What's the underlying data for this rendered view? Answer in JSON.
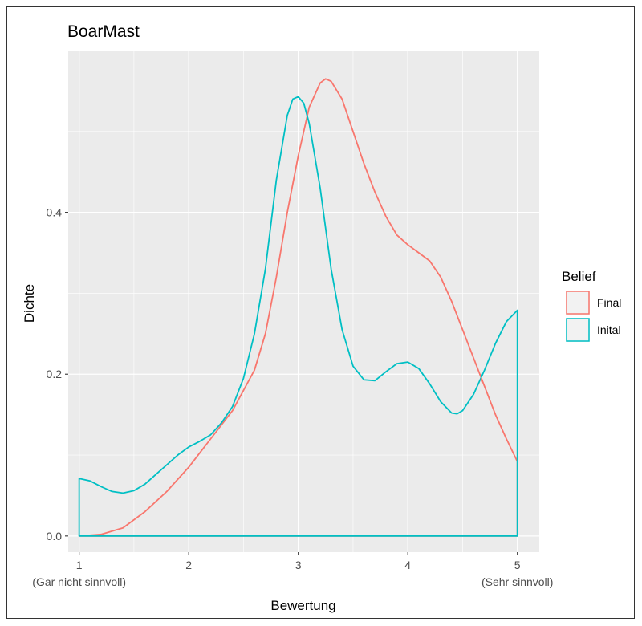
{
  "chart_data": {
    "type": "area",
    "title": "BoarMast",
    "xlabel": "Bewertung",
    "ylabel": "Dichte",
    "xlim": [
      0.9,
      5.2
    ],
    "ylim": [
      -0.02,
      0.6
    ],
    "x_ticks": [
      {
        "value": 1,
        "label": "1",
        "sublabel": "(Gar nicht sinnvoll)"
      },
      {
        "value": 2,
        "label": "2",
        "sublabel": ""
      },
      {
        "value": 3,
        "label": "3",
        "sublabel": ""
      },
      {
        "value": 4,
        "label": "4",
        "sublabel": ""
      },
      {
        "value": 5,
        "label": "5",
        "sublabel": "(Sehr sinnvoll)"
      }
    ],
    "y_ticks": [
      {
        "value": 0.0,
        "label": "0.0"
      },
      {
        "value": 0.2,
        "label": "0.2"
      },
      {
        "value": 0.4,
        "label": "0.4"
      }
    ],
    "grid": true,
    "legend": {
      "title": "Belief",
      "placement": "right"
    },
    "series": [
      {
        "name": "Final",
        "color": "#F8766D",
        "x": [
          1.0,
          1.2,
          1.4,
          1.6,
          1.8,
          2.0,
          2.2,
          2.4,
          2.6,
          2.7,
          2.8,
          2.9,
          3.0,
          3.1,
          3.2,
          3.25,
          3.3,
          3.4,
          3.5,
          3.6,
          3.7,
          3.8,
          3.9,
          4.0,
          4.1,
          4.2,
          4.3,
          4.4,
          4.5,
          4.6,
          4.7,
          4.8,
          4.9,
          5.0
        ],
        "values": [
          0.0,
          0.002,
          0.01,
          0.03,
          0.055,
          0.085,
          0.12,
          0.155,
          0.205,
          0.25,
          0.32,
          0.4,
          0.47,
          0.53,
          0.56,
          0.565,
          0.562,
          0.54,
          0.5,
          0.46,
          0.425,
          0.395,
          0.372,
          0.36,
          0.35,
          0.34,
          0.32,
          0.29,
          0.255,
          0.22,
          0.185,
          0.15,
          0.12,
          0.092
        ]
      },
      {
        "name": "Inital",
        "color": "#00BFC4",
        "x": [
          1.0,
          1.1,
          1.2,
          1.3,
          1.4,
          1.5,
          1.6,
          1.7,
          1.8,
          1.9,
          2.0,
          2.1,
          2.2,
          2.3,
          2.4,
          2.5,
          2.6,
          2.7,
          2.8,
          2.9,
          2.95,
          3.0,
          3.05,
          3.1,
          3.2,
          3.3,
          3.4,
          3.5,
          3.6,
          3.7,
          3.8,
          3.9,
          4.0,
          4.1,
          4.2,
          4.3,
          4.4,
          4.45,
          4.5,
          4.6,
          4.7,
          4.8,
          4.9,
          5.0
        ],
        "values": [
          0.071,
          0.068,
          0.061,
          0.055,
          0.053,
          0.056,
          0.064,
          0.076,
          0.088,
          0.1,
          0.11,
          0.117,
          0.125,
          0.14,
          0.16,
          0.195,
          0.25,
          0.33,
          0.44,
          0.52,
          0.54,
          0.543,
          0.535,
          0.51,
          0.43,
          0.33,
          0.255,
          0.21,
          0.193,
          0.192,
          0.203,
          0.213,
          0.215,
          0.207,
          0.188,
          0.166,
          0.152,
          0.151,
          0.155,
          0.175,
          0.205,
          0.238,
          0.265,
          0.279
        ]
      }
    ]
  }
}
